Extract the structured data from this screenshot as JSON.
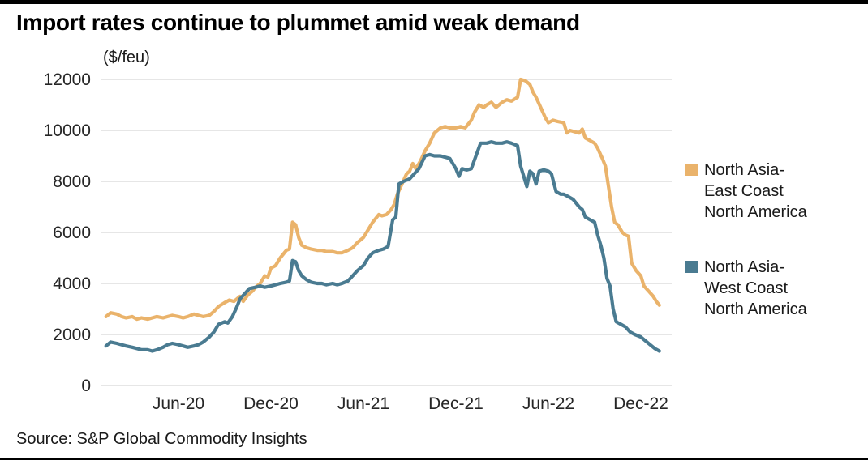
{
  "title": "Import rates continue to plummet amid weak demand",
  "unit_label": "($/feu)",
  "source": "Source: S&P Global Commodity Insights",
  "legend": {
    "items": [
      {
        "label": "North Asia-\nEast Coast\nNorth America"
      },
      {
        "label": "North Asia-\nWest Coast\nNorth America"
      }
    ]
  },
  "chart_data": {
    "type": "line",
    "title": "Import rates continue to plummet amid weak demand",
    "ylabel": "$/feu",
    "xlabel": "",
    "unit": "($/feu)",
    "x_unit": "months since Jan-2020",
    "xlim": [
      0,
      37
    ],
    "ylim": [
      0,
      12000
    ],
    "y_ticks": [
      0,
      2000,
      4000,
      6000,
      8000,
      10000,
      12000
    ],
    "x_ticks": [
      {
        "x": 5,
        "label": "Jun-20"
      },
      {
        "x": 11,
        "label": "Dec-20"
      },
      {
        "x": 17,
        "label": "Jun-21"
      },
      {
        "x": 23,
        "label": "Dec-21"
      },
      {
        "x": 29,
        "label": "Jun-22"
      },
      {
        "x": 35,
        "label": "Dec-22"
      }
    ],
    "grid": "horizontal",
    "grid_color": "#d6d6d6",
    "axis_text_color": "#262626",
    "legend_position": "right",
    "series": [
      {
        "id": "north-asia-east-coast",
        "name": "North Asia-East Coast North America",
        "color": "#EAB36B",
        "points": [
          [
            0.3,
            2700
          ],
          [
            0.6,
            2850
          ],
          [
            1,
            2800
          ],
          [
            1.3,
            2700
          ],
          [
            1.6,
            2650
          ],
          [
            2,
            2700
          ],
          [
            2.3,
            2600
          ],
          [
            2.6,
            2650
          ],
          [
            3,
            2600
          ],
          [
            3.3,
            2650
          ],
          [
            3.6,
            2700
          ],
          [
            4,
            2650
          ],
          [
            4.3,
            2700
          ],
          [
            4.6,
            2750
          ],
          [
            5,
            2700
          ],
          [
            5.3,
            2650
          ],
          [
            5.6,
            2700
          ],
          [
            6,
            2800
          ],
          [
            6.3,
            2750
          ],
          [
            6.6,
            2700
          ],
          [
            7,
            2750
          ],
          [
            7.3,
            2900
          ],
          [
            7.6,
            3100
          ],
          [
            8,
            3250
          ],
          [
            8.3,
            3350
          ],
          [
            8.6,
            3300
          ],
          [
            9,
            3500
          ],
          [
            9.2,
            3300
          ],
          [
            9.5,
            3550
          ],
          [
            9.8,
            3700
          ],
          [
            10,
            3850
          ],
          [
            10.3,
            4000
          ],
          [
            10.6,
            4300
          ],
          [
            10.8,
            4250
          ],
          [
            11,
            4600
          ],
          [
            11.3,
            4700
          ],
          [
            11.6,
            5000
          ],
          [
            12,
            5300
          ],
          [
            12.2,
            5350
          ],
          [
            12.4,
            6400
          ],
          [
            12.6,
            6300
          ],
          [
            12.8,
            5800
          ],
          [
            13,
            5500
          ],
          [
            13.3,
            5400
          ],
          [
            13.6,
            5350
          ],
          [
            14,
            5300
          ],
          [
            14.3,
            5300
          ],
          [
            14.6,
            5250
          ],
          [
            15,
            5250
          ],
          [
            15.3,
            5200
          ],
          [
            15.6,
            5200
          ],
          [
            16,
            5300
          ],
          [
            16.3,
            5400
          ],
          [
            16.6,
            5600
          ],
          [
            17,
            5800
          ],
          [
            17.3,
            6100
          ],
          [
            17.6,
            6400
          ],
          [
            18,
            6700
          ],
          [
            18.2,
            6650
          ],
          [
            18.5,
            6700
          ],
          [
            18.8,
            6900
          ],
          [
            19,
            7100
          ],
          [
            19.2,
            7500
          ],
          [
            19.5,
            7900
          ],
          [
            19.8,
            8300
          ],
          [
            20,
            8400
          ],
          [
            20.2,
            8700
          ],
          [
            20.4,
            8500
          ],
          [
            20.7,
            8800
          ],
          [
            21,
            9200
          ],
          [
            21.3,
            9500
          ],
          [
            21.6,
            9900
          ],
          [
            22,
            10100
          ],
          [
            22.3,
            10150
          ],
          [
            22.6,
            10100
          ],
          [
            23,
            10100
          ],
          [
            23.3,
            10150
          ],
          [
            23.6,
            10100
          ],
          [
            24,
            10400
          ],
          [
            24.2,
            10700
          ],
          [
            24.5,
            11000
          ],
          [
            24.8,
            10900
          ],
          [
            25,
            11000
          ],
          [
            25.3,
            11100
          ],
          [
            25.6,
            10900
          ],
          [
            26,
            11100
          ],
          [
            26.3,
            11200
          ],
          [
            26.6,
            11150
          ],
          [
            27,
            11300
          ],
          [
            27.2,
            12000
          ],
          [
            27.5,
            11950
          ],
          [
            27.8,
            11800
          ],
          [
            28,
            11500
          ],
          [
            28.2,
            11300
          ],
          [
            28.5,
            10900
          ],
          [
            28.8,
            10500
          ],
          [
            29,
            10300
          ],
          [
            29.3,
            10400
          ],
          [
            29.6,
            10350
          ],
          [
            30,
            10300
          ],
          [
            30.2,
            9900
          ],
          [
            30.4,
            10000
          ],
          [
            30.7,
            9950
          ],
          [
            31,
            9900
          ],
          [
            31.2,
            10050
          ],
          [
            31.4,
            9700
          ],
          [
            31.7,
            9600
          ],
          [
            32,
            9500
          ],
          [
            32.2,
            9300
          ],
          [
            32.5,
            8900
          ],
          [
            32.7,
            8600
          ],
          [
            32.9,
            7800
          ],
          [
            33.1,
            7000
          ],
          [
            33.3,
            6400
          ],
          [
            33.5,
            6300
          ],
          [
            33.8,
            6000
          ],
          [
            34,
            5900
          ],
          [
            34.2,
            5850
          ],
          [
            34.4,
            4800
          ],
          [
            34.7,
            4500
          ],
          [
            35,
            4300
          ],
          [
            35.2,
            3900
          ],
          [
            35.5,
            3700
          ],
          [
            35.8,
            3500
          ],
          [
            36,
            3300
          ],
          [
            36.2,
            3150
          ]
        ]
      },
      {
        "id": "north-asia-west-coast",
        "name": "North Asia-West Coast North America",
        "color": "#4A7B91",
        "points": [
          [
            0.3,
            1550
          ],
          [
            0.6,
            1700
          ],
          [
            1,
            1650
          ],
          [
            1.3,
            1600
          ],
          [
            1.6,
            1550
          ],
          [
            2,
            1500
          ],
          [
            2.3,
            1450
          ],
          [
            2.6,
            1400
          ],
          [
            3,
            1400
          ],
          [
            3.3,
            1350
          ],
          [
            3.6,
            1400
          ],
          [
            4,
            1500
          ],
          [
            4.3,
            1600
          ],
          [
            4.6,
            1650
          ],
          [
            5,
            1600
          ],
          [
            5.3,
            1550
          ],
          [
            5.6,
            1500
          ],
          [
            6,
            1550
          ],
          [
            6.3,
            1600
          ],
          [
            6.6,
            1700
          ],
          [
            7,
            1900
          ],
          [
            7.3,
            2100
          ],
          [
            7.6,
            2400
          ],
          [
            8,
            2500
          ],
          [
            8.2,
            2450
          ],
          [
            8.5,
            2700
          ],
          [
            8.8,
            3100
          ],
          [
            9,
            3400
          ],
          [
            9.3,
            3600
          ],
          [
            9.6,
            3800
          ],
          [
            10,
            3850
          ],
          [
            10.3,
            3900
          ],
          [
            10.6,
            3850
          ],
          [
            11,
            3900
          ],
          [
            11.3,
            3950
          ],
          [
            11.6,
            4000
          ],
          [
            12,
            4050
          ],
          [
            12.2,
            4100
          ],
          [
            12.4,
            4900
          ],
          [
            12.6,
            4850
          ],
          [
            12.8,
            4500
          ],
          [
            13,
            4300
          ],
          [
            13.3,
            4150
          ],
          [
            13.6,
            4050
          ],
          [
            14,
            4000
          ],
          [
            14.3,
            4000
          ],
          [
            14.6,
            3950
          ],
          [
            15,
            4000
          ],
          [
            15.3,
            3950
          ],
          [
            15.6,
            4000
          ],
          [
            16,
            4100
          ],
          [
            16.3,
            4300
          ],
          [
            16.6,
            4500
          ],
          [
            17,
            4700
          ],
          [
            17.3,
            5000
          ],
          [
            17.6,
            5200
          ],
          [
            18,
            5300
          ],
          [
            18.3,
            5350
          ],
          [
            18.6,
            5450
          ],
          [
            18.9,
            6500
          ],
          [
            19.1,
            6600
          ],
          [
            19.3,
            7900
          ],
          [
            19.6,
            8000
          ],
          [
            20,
            8100
          ],
          [
            20.3,
            8300
          ],
          [
            20.6,
            8500
          ],
          [
            21,
            9000
          ],
          [
            21.3,
            9050
          ],
          [
            21.6,
            9000
          ],
          [
            22,
            9000
          ],
          [
            22.3,
            8950
          ],
          [
            22.6,
            8900
          ],
          [
            23,
            8500
          ],
          [
            23.2,
            8200
          ],
          [
            23.4,
            8500
          ],
          [
            23.7,
            8450
          ],
          [
            24,
            8500
          ],
          [
            24.3,
            9000
          ],
          [
            24.6,
            9500
          ],
          [
            25,
            9500
          ],
          [
            25.3,
            9550
          ],
          [
            25.6,
            9500
          ],
          [
            26,
            9500
          ],
          [
            26.3,
            9550
          ],
          [
            26.6,
            9500
          ],
          [
            27,
            9400
          ],
          [
            27.2,
            8600
          ],
          [
            27.4,
            8200
          ],
          [
            27.6,
            7800
          ],
          [
            27.8,
            8400
          ],
          [
            28,
            8300
          ],
          [
            28.2,
            7900
          ],
          [
            28.4,
            8400
          ],
          [
            28.7,
            8450
          ],
          [
            29,
            8400
          ],
          [
            29.2,
            8300
          ],
          [
            29.5,
            7600
          ],
          [
            29.8,
            7500
          ],
          [
            30,
            7500
          ],
          [
            30.3,
            7400
          ],
          [
            30.6,
            7300
          ],
          [
            31,
            7000
          ],
          [
            31.2,
            6900
          ],
          [
            31.4,
            6600
          ],
          [
            31.7,
            6500
          ],
          [
            32,
            6400
          ],
          [
            32.2,
            5900
          ],
          [
            32.4,
            5500
          ],
          [
            32.6,
            5000
          ],
          [
            32.8,
            4200
          ],
          [
            33,
            3900
          ],
          [
            33.2,
            3000
          ],
          [
            33.4,
            2500
          ],
          [
            33.7,
            2400
          ],
          [
            34,
            2300
          ],
          [
            34.3,
            2100
          ],
          [
            34.6,
            2000
          ],
          [
            35,
            1900
          ],
          [
            35.3,
            1750
          ],
          [
            35.6,
            1600
          ],
          [
            35.9,
            1450
          ],
          [
            36.2,
            1350
          ]
        ]
      }
    ]
  }
}
